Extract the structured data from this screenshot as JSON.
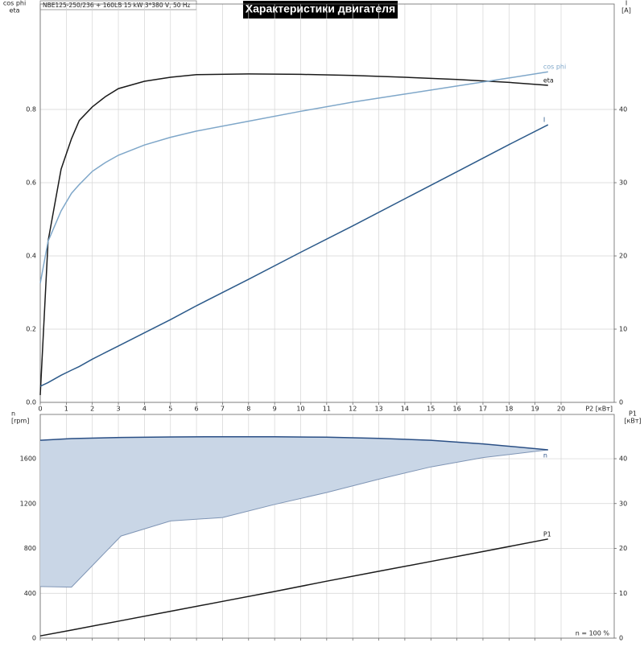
{
  "chart_data": [
    {
      "type": "line",
      "title": "Характеристики двигателя",
      "subtitle": "NBE125-250/236 + 160LB   15 kW   3*380 V, 50 Hz",
      "ylabel": [
        "cos phi",
        "eta"
      ],
      "y2label": [
        "I",
        "[A]"
      ],
      "xlabel": "P2 [кВт]",
      "x": [
        0,
        0.3,
        0.8,
        1.2,
        1.5,
        2,
        2.5,
        3,
        4,
        5,
        6,
        8,
        10,
        12,
        14,
        16,
        18,
        19.5
      ],
      "series": [
        {
          "name": "eta",
          "color": "#1a1a1a",
          "values": [
            0.02,
            0.44,
            0.637,
            0.72,
            0.77,
            0.807,
            0.835,
            0.857,
            0.877,
            0.888,
            0.895,
            0.897,
            0.896,
            0.893,
            0.888,
            0.882,
            0.874,
            0.866
          ]
        },
        {
          "name": "cos phi",
          "color": "#7fa7c9",
          "values": [
            0.325,
            0.44,
            0.523,
            0.571,
            0.595,
            0.631,
            0.655,
            0.675,
            0.703,
            0.724,
            0.741,
            0.768,
            0.795,
            0.82,
            0.842,
            0.864,
            0.886,
            0.903
          ]
        },
        {
          "name": "I",
          "color": "#2c5a8a",
          "axis": "y2",
          "values": [
            2.2,
            2.7,
            3.7,
            4.4,
            4.9,
            5.9,
            6.8,
            7.7,
            9.5,
            11.3,
            13.2,
            16.8,
            20.5,
            24.1,
            27.8,
            31.5,
            35.2,
            37.9
          ]
        }
      ],
      "xlim": [
        0,
        22.04
      ],
      "xticks": [
        0,
        1,
        2,
        3,
        4,
        5,
        6,
        7,
        8,
        9,
        10,
        11,
        12,
        13,
        14,
        15,
        16,
        17,
        18,
        19,
        20
      ],
      "ylim": [
        0,
        1.088
      ],
      "yticks": [
        {
          "value": 0,
          "label": "0.0"
        },
        0.2,
        0.4,
        0.6,
        0.8
      ],
      "y2lim": [
        0,
        54.4
      ],
      "y2ticks": [
        0,
        10,
        20,
        30,
        40
      ],
      "grid": true,
      "xtick_labels": true
    },
    {
      "type": "line",
      "ylabel": [
        "n",
        "[rpm]"
      ],
      "y2label": [
        "P1",
        "[кВт]"
      ],
      "annotation": "n = 100 %",
      "x": [
        0,
        1.2,
        3.1,
        5,
        7,
        9,
        11,
        13,
        15,
        17,
        19.5
      ],
      "series": [
        {
          "name": "n",
          "color": "#2a4f85",
          "fill": "#c9d6e6",
          "values": [
            1765,
            1780,
            1790,
            1794,
            1796,
            1796,
            1792,
            1782,
            1765,
            1732,
            1679
          ],
          "lower": [
            460,
            455,
            911,
            1045,
            1076,
            1193,
            1299,
            1417,
            1527,
            1610,
            1679
          ]
        },
        {
          "name": "P1",
          "color": "#1a1a1a",
          "axis": "y2",
          "values": [
            0.5,
            1.8,
            3.9,
            6.0,
            8.2,
            10.4,
            12.7,
            14.9,
            17.1,
            19.3,
            22.1
          ]
        }
      ],
      "xlim": [
        0,
        22.04
      ],
      "xticks": [
        0,
        1,
        2,
        3,
        4,
        5,
        6,
        7,
        8,
        9,
        10,
        11,
        12,
        13,
        14,
        15,
        16,
        17,
        18,
        19,
        20
      ],
      "ylim": [
        0,
        1995
      ],
      "yticks": [
        0,
        400,
        800,
        1200,
        1600
      ],
      "y2lim": [
        0,
        49.87
      ],
      "y2ticks": [
        0,
        10,
        20,
        30,
        40
      ],
      "grid": true,
      "xtick_labels": false
    }
  ]
}
